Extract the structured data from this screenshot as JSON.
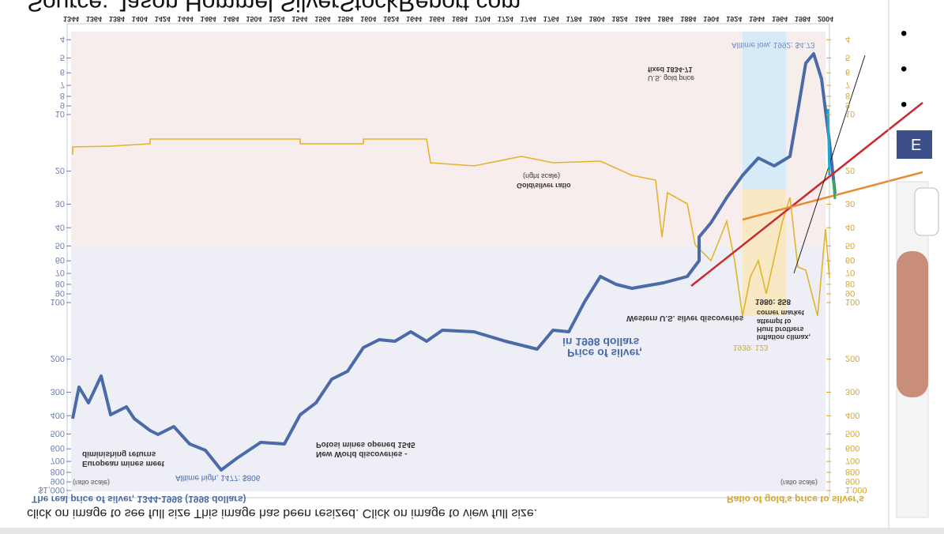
{
  "header": {
    "source": "Source: Jason Hommel SilverStockReport.com"
  },
  "chart_image": {
    "years": [
      1344,
      1364,
      1384,
      1404,
      1424,
      1444,
      1464,
      1484,
      1504,
      1524,
      1544,
      1564,
      1584,
      1604,
      1624,
      1644,
      1664,
      1684,
      1704,
      1724,
      1744,
      1764,
      1784,
      1804,
      1824,
      1844,
      1864,
      1884,
      1904,
      1924,
      1944,
      1964,
      1984,
      2004
    ],
    "left_axis": [
      4,
      5,
      6,
      7,
      8,
      9,
      10,
      20,
      30,
      40,
      50,
      60,
      70,
      80,
      90,
      100,
      200,
      300,
      400,
      500,
      600,
      700,
      800,
      900,
      {
        "value": 1000,
        "label": "$1,000"
      }
    ],
    "right_axis": [
      4,
      5,
      6,
      7,
      8,
      9,
      10,
      20,
      30,
      40,
      50,
      60,
      70,
      80,
      90,
      100,
      200,
      300,
      400,
      500,
      600,
      700,
      800,
      900,
      {
        "value": 1000,
        "label": "1,000"
      }
    ],
    "left_title": "The real price of silver, 1344-1998 (1998 dollars)",
    "right_title": "Ratio of gold's price to silver's",
    "scale_notes": [
      "(ratio scale)",
      "(ratio scale)"
    ],
    "annotations": [
      "Alltime high, 1477: $806",
      "European mines meet",
      "diminishing returns",
      "New World discoveries -",
      "Potosi mines opened 1545",
      "Price of silver,",
      "in 1998 dollars",
      "Western U.S. silver discoveries",
      "Gold/silver ratio",
      "(right scale)",
      "U.S. gold price",
      "fixed 1834-71",
      "Alltime low, 1992: $4.73",
      "1980: $58",
      "Inflation climax,",
      "Hunt brothers",
      "attempt to",
      "corner market",
      "1939: 123"
    ]
  },
  "caption": "click on image to see full size This image has been resized. Click on image to view full size.",
  "sidebar": {
    "button": "E"
  }
}
